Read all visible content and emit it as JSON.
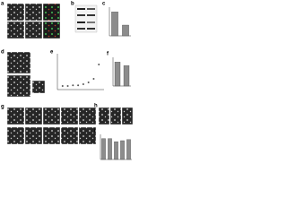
{
  "panels": [
    "a",
    "b",
    "c",
    "d",
    "e",
    "f",
    "g",
    "h",
    "i"
  ],
  "chart_data": [
    {
      "type": "bar",
      "categories": [
        null,
        null
      ],
      "values": [
        1.0,
        0.45
      ],
      "color": "#8c8c8c",
      "ylim": [
        0,
        1.2
      ]
    },
    {
      "type": "scatter",
      "x": [
        1,
        2,
        3,
        4,
        5,
        6,
        7,
        8
      ],
      "y": [
        0.1,
        0.1,
        0.12,
        0.12,
        0.15,
        0.2,
        0.3,
        0.7
      ],
      "color": "#555555",
      "xlim": [
        0,
        9
      ],
      "ylim": [
        0,
        1
      ]
    },
    {
      "type": "bar",
      "categories": [
        null,
        null
      ],
      "values": [
        1.0,
        0.85
      ],
      "color": "#8c8c8c",
      "ylim": [
        0,
        1.2
      ]
    },
    {
      "type": "bar",
      "categories": [
        null,
        null,
        null,
        null,
        null
      ],
      "values": [
        1.0,
        1.0,
        0.85,
        0.9,
        0.95
      ],
      "color": "#8c8c8c",
      "ylim": [
        0,
        1.2
      ]
    }
  ]
}
